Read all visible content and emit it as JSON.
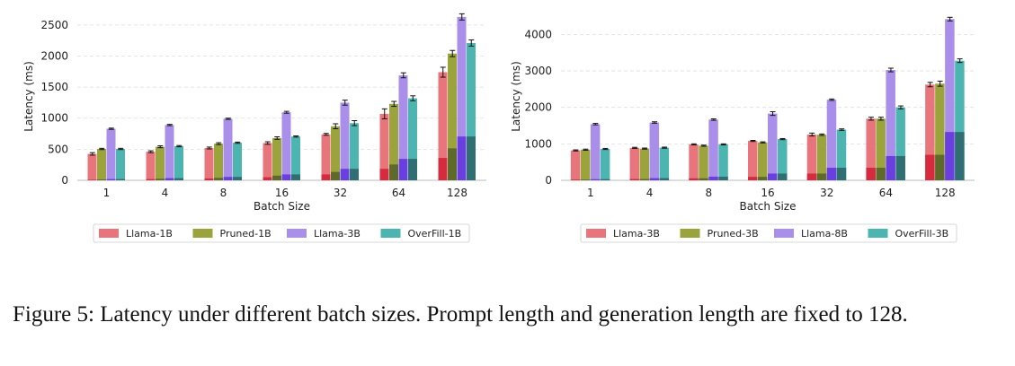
{
  "chart_data": [
    {
      "type": "bar",
      "xlabel": "Batch Size",
      "ylabel": "Latency (ms)",
      "ylim": [
        0,
        2700
      ],
      "yticks": [
        0,
        500,
        1000,
        1500,
        2000,
        2500
      ],
      "categories": [
        "1",
        "4",
        "8",
        "16",
        "32",
        "64",
        "128"
      ],
      "grid": "horizontal dashed",
      "legend": "bottom",
      "series": [
        {
          "name": "Llama-1B",
          "color": "#e8747c",
          "inner_color": "#d62a3e",
          "values": [
            425,
            460,
            520,
            600,
            740,
            1070,
            1740
          ],
          "errors": [
            20,
            15,
            15,
            20,
            15,
            80,
            80
          ],
          "inner_values": [
            10,
            20,
            30,
            50,
            95,
            185,
            360
          ]
        },
        {
          "name": "Pruned-1B",
          "color": "#9aa33c",
          "inner_color": "#5e6a2a",
          "values": [
            505,
            540,
            590,
            680,
            870,
            1230,
            2040
          ],
          "errors": [
            10,
            15,
            15,
            20,
            40,
            40,
            50
          ],
          "inner_values": [
            15,
            25,
            40,
            75,
            135,
            255,
            515
          ]
        },
        {
          "name": "Llama-3B",
          "color": "#a98fe9",
          "inner_color": "#6a3fe0",
          "values": [
            830,
            890,
            990,
            1095,
            1250,
            1690,
            2630
          ],
          "errors": [
            10,
            10,
            10,
            15,
            40,
            40,
            50
          ],
          "inner_values": [
            20,
            35,
            55,
            95,
            185,
            345,
            705
          ]
        },
        {
          "name": "OverFill-1B",
          "color": "#4db5b0",
          "inner_color": "#2f6e73",
          "values": [
            505,
            550,
            605,
            705,
            920,
            1320,
            2210
          ],
          "errors": [
            10,
            10,
            10,
            10,
            40,
            40,
            50
          ],
          "inner_values": [
            20,
            35,
            55,
            95,
            185,
            345,
            705
          ]
        }
      ]
    },
    {
      "type": "bar",
      "xlabel": "Batch Size",
      "ylabel": "Latency (ms)",
      "ylim": [
        0,
        4600
      ],
      "yticks": [
        0,
        1000,
        2000,
        3000,
        4000
      ],
      "categories": [
        "1",
        "4",
        "8",
        "16",
        "32",
        "64",
        "128"
      ],
      "grid": "horizontal dashed",
      "legend": "bottom",
      "series": [
        {
          "name": "Llama-3B",
          "color": "#e8747c",
          "inner_color": "#d62a3e",
          "values": [
            820,
            890,
            985,
            1080,
            1255,
            1690,
            2625
          ],
          "errors": [
            15,
            15,
            15,
            15,
            40,
            40,
            60
          ],
          "inner_values": [
            20,
            35,
            55,
            95,
            185,
            345,
            700
          ]
        },
        {
          "name": "Pruned-3B",
          "color": "#9aa33c",
          "inner_color": "#5e6a2a",
          "values": [
            840,
            870,
            950,
            1040,
            1250,
            1690,
            2650
          ],
          "errors": [
            15,
            15,
            15,
            15,
            20,
            40,
            70
          ],
          "inner_values": [
            20,
            35,
            55,
            95,
            185,
            345,
            700
          ]
        },
        {
          "name": "Llama-8B",
          "color": "#a98fe9",
          "inner_color": "#6a3fe0",
          "values": [
            1540,
            1585,
            1665,
            1830,
            2210,
            3025,
            4420
          ],
          "errors": [
            20,
            20,
            20,
            50,
            20,
            50,
            50
          ],
          "inner_values": [
            30,
            60,
            100,
            185,
            345,
            665,
            1325
          ]
        },
        {
          "name": "OverFill-3B",
          "color": "#4db5b0",
          "inner_color": "#2f6e73",
          "values": [
            860,
            895,
            985,
            1130,
            1390,
            2000,
            3280
          ],
          "errors": [
            15,
            15,
            15,
            15,
            20,
            40,
            50
          ],
          "inner_values": [
            30,
            60,
            100,
            185,
            345,
            665,
            1325
          ]
        }
      ]
    }
  ],
  "caption": "Figure 5: Latency under different batch sizes. Prompt length and generation length are fixed to 128."
}
